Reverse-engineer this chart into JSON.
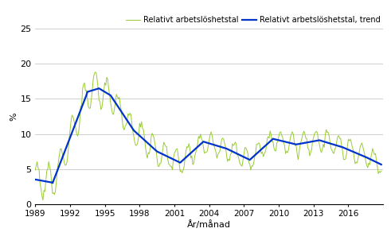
{
  "title": "",
  "ylabel": "%",
  "xlabel": "År/månad",
  "legend_labels": [
    "Relativt arbetslöshetstal",
    "Relativt arbetslöshetstal, trend"
  ],
  "line_color_main": "#99cc33",
  "line_color_trend": "#0033cc",
  "ylim": [
    0,
    25
  ],
  "yticks": [
    0,
    5,
    10,
    15,
    20,
    25
  ],
  "xtick_years": [
    1989,
    1992,
    1995,
    1998,
    2001,
    2004,
    2007,
    2010,
    2013,
    2016
  ],
  "background_color": "#ffffff",
  "grid_color": "#bbbbbb"
}
